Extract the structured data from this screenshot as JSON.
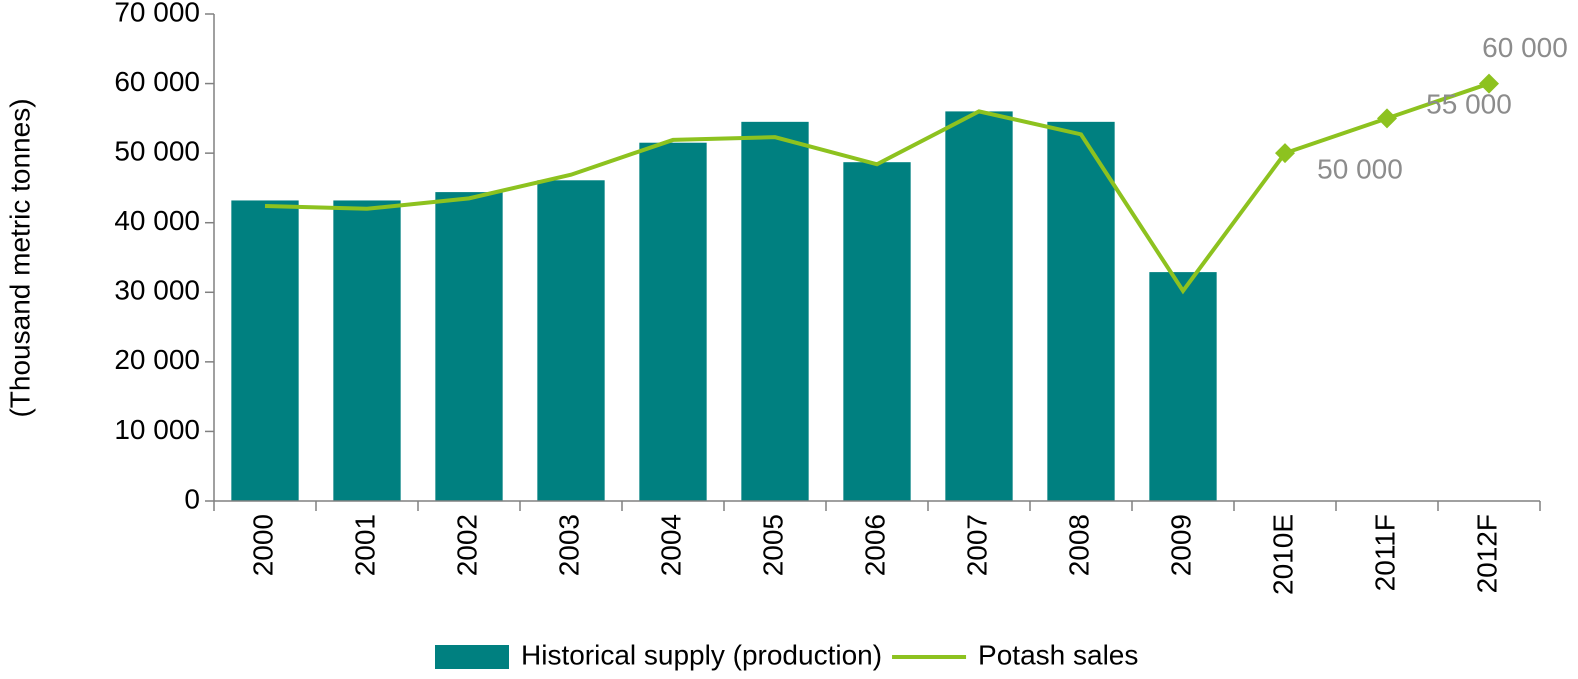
{
  "chart_data": {
    "type": "bar_line",
    "y_axis_label": "(Thousand metric tonnes)",
    "categories": [
      "2000",
      "2001",
      "2002",
      "2003",
      "2004",
      "2005",
      "2006",
      "2007",
      "2008",
      "2009",
      "2010E",
      "2011F",
      "2012F"
    ],
    "series": [
      {
        "name": "Historical supply (production)",
        "type": "bar",
        "color": "#008080",
        "values": [
          43200,
          43200,
          44400,
          46100,
          51500,
          54500,
          48700,
          56000,
          54500,
          32900,
          null,
          null,
          null
        ]
      },
      {
        "name": "Potash sales",
        "type": "line",
        "color": "#8dc21f",
        "values": [
          42400,
          42000,
          43500,
          46900,
          51900,
          52300,
          48400,
          56000,
          52700,
          30200,
          50000,
          55000,
          60000
        ],
        "value_labels": [
          null,
          null,
          null,
          null,
          null,
          null,
          null,
          null,
          null,
          null,
          "50 000",
          "55 000",
          "60 000"
        ]
      }
    ],
    "ylim": [
      0,
      70000
    ],
    "yticks": [
      0,
      {
        "value": 10000,
        "label": "10 000"
      },
      {
        "value": 20000,
        "label": "20 000"
      },
      {
        "value": 30000,
        "label": "30 000"
      },
      {
        "value": 40000,
        "label": "40 000"
      },
      {
        "value": 50000,
        "label": "50 000"
      },
      {
        "value": 60000,
        "label": "60 000"
      },
      {
        "value": 70000,
        "label": "70 000"
      }
    ],
    "value_label_color": "#8c8c8c",
    "legend": "bottom"
  }
}
